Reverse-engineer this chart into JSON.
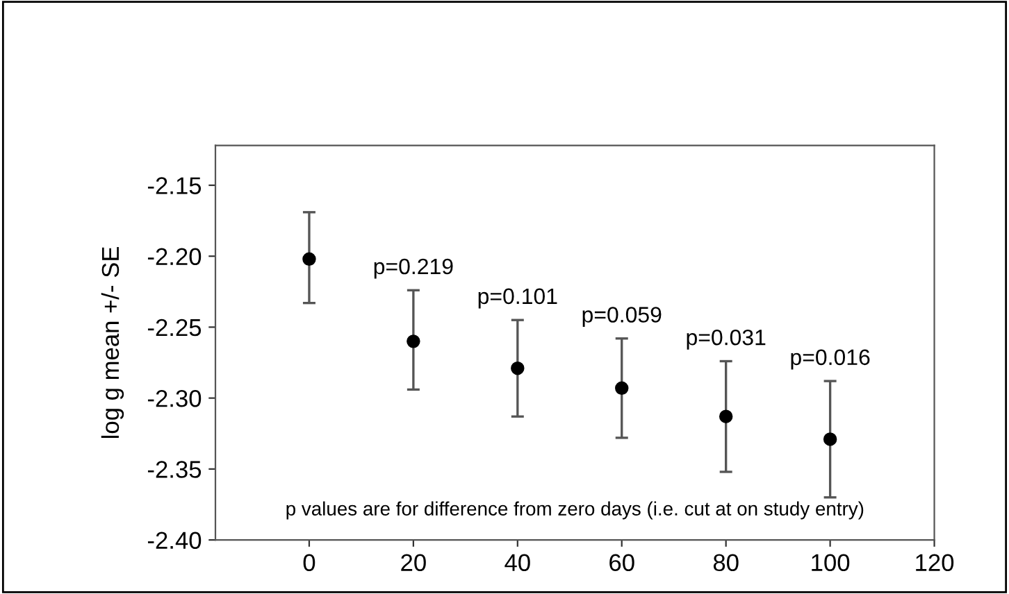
{
  "chart_data": {
    "type": "scatter",
    "ylabel": "log g mean +/- SE",
    "x": [
      0,
      20,
      40,
      60,
      80,
      100
    ],
    "series": [
      {
        "color": "#000000",
        "values": [
          -2.202,
          -2.26,
          -2.279,
          -2.293,
          -2.313,
          -2.329
        ],
        "errors": [
          [
            -2.233,
            -2.169
          ],
          [
            -2.294,
            -2.224
          ],
          [
            -2.313,
            -2.245
          ],
          [
            -2.328,
            -2.258
          ],
          [
            -2.352,
            -2.274
          ],
          [
            -2.37,
            -2.288
          ]
        ]
      }
    ],
    "xlim": [
      -18,
      120
    ],
    "xticks": [
      0,
      20,
      40,
      60,
      80,
      100,
      120
    ],
    "ylim": [
      -2.4,
      -2.122
    ],
    "yticks": [
      {
        "value": -2.4,
        "label": "-2.40"
      },
      {
        "value": -2.35,
        "label": "-2.35"
      },
      {
        "value": -2.3,
        "label": "-2.30"
      },
      {
        "value": -2.25,
        "label": "-2.25"
      },
      {
        "value": -2.2,
        "label": "-2.20"
      },
      {
        "value": -2.15,
        "label": "-2.15"
      }
    ],
    "marker": "circle",
    "grid": false,
    "legend": false,
    "annotations": [
      {
        "text": "p=0.219",
        "x": 20,
        "y": -2.224
      },
      {
        "text": "p=0.101",
        "x": 40,
        "y": -2.245
      },
      {
        "text": "p=0.059",
        "x": 60,
        "y": -2.258
      },
      {
        "text": "p=0.031",
        "x": 80,
        "y": -2.274
      },
      {
        "text": "p=0.016",
        "x": 100,
        "y": -2.288
      },
      "p values are for difference from zero days (i.e. cut at on study entry)"
    ]
  }
}
